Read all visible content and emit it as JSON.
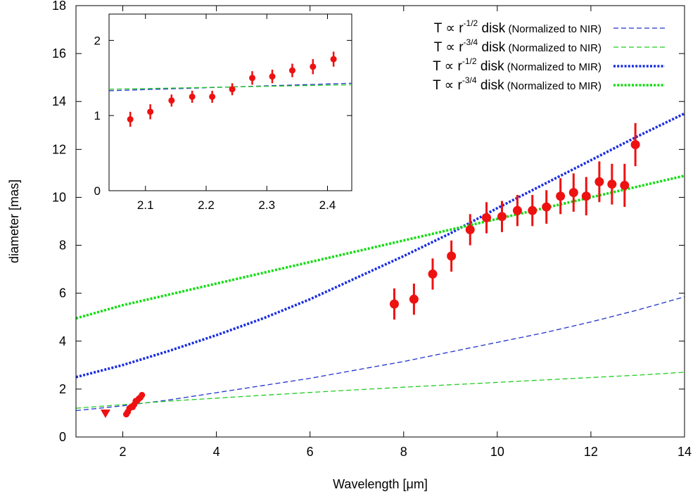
{
  "chart_data": {
    "type": "scatter",
    "xlabel": "Wavelength [μm]",
    "ylabel": "diameter [mas]",
    "xlim": [
      1,
      14
    ],
    "ylim": [
      0,
      18
    ],
    "x_ticks": [
      "2",
      "4",
      "6",
      "8",
      "10",
      "12",
      "14"
    ],
    "y_ticks": [
      "0",
      "2",
      "4",
      "6",
      "8",
      "10",
      "12",
      "14",
      "16",
      "18"
    ],
    "colors": {
      "data": "#ee1111",
      "nir_half": "#2233cc",
      "nir_threequarter": "#22cc22",
      "mir_half": "#1a2ee0",
      "mir_threequarter": "#11dd11"
    },
    "legend": [
      {
        "prefix": "T ∝ r",
        "exp": "-1/2",
        "label": " disk",
        "note": " (Normalized to NIR)",
        "style": "thin-dashed",
        "color": "#2233cc"
      },
      {
        "prefix": "T ∝ r",
        "exp": "-3/4",
        "label": " disk",
        "note": " (Normalized to NIR)",
        "style": "thin-dashed",
        "color": "#22cc22"
      },
      {
        "prefix": "T ∝ r",
        "exp": "-1/2",
        "label": " disk",
        "note": " (Normalized to MIR)",
        "style": "thick-dotted",
        "color": "#1a2ee0"
      },
      {
        "prefix": "T ∝ r",
        "exp": "-3/4",
        "label": " disk",
        "note": " (Normalized to MIR)",
        "style": "thick-dotted",
        "color": "#11dd11"
      }
    ],
    "series": [
      {
        "model": "nir-half",
        "style": "thin-dashed",
        "color": "#2233cc",
        "x": [
          1,
          2,
          3,
          4,
          5,
          6,
          7,
          8,
          9,
          10,
          11,
          12,
          13,
          14
        ],
        "y": [
          1.1,
          1.3,
          1.55,
          1.85,
          2.15,
          2.45,
          2.8,
          3.15,
          3.55,
          3.95,
          4.35,
          4.8,
          5.3,
          5.85
        ]
      },
      {
        "model": "nir-threequarter",
        "style": "thin-dashed",
        "color": "#22cc22",
        "x": [
          1,
          2,
          3,
          4,
          5,
          6,
          7,
          8,
          9,
          10,
          11,
          12,
          13,
          14
        ],
        "y": [
          1.2,
          1.35,
          1.5,
          1.62,
          1.74,
          1.86,
          1.97,
          2.08,
          2.18,
          2.28,
          2.38,
          2.48,
          2.58,
          2.7
        ]
      },
      {
        "model": "mir-half",
        "style": "thick-dotted",
        "color": "#1a2ee0",
        "x": [
          1,
          2,
          3,
          4,
          5,
          6,
          7,
          8,
          9,
          10,
          11,
          12,
          13,
          14
        ],
        "y": [
          2.5,
          3.0,
          3.6,
          4.25,
          4.95,
          5.75,
          6.65,
          7.55,
          8.5,
          9.55,
          10.55,
          11.55,
          12.55,
          13.5
        ]
      },
      {
        "model": "mir-threequarter",
        "style": "thick-dotted",
        "color": "#11dd11",
        "x": [
          1,
          2,
          3,
          4,
          5,
          6,
          7,
          8,
          9,
          10,
          11,
          12,
          13,
          14
        ],
        "y": [
          4.95,
          5.5,
          5.95,
          6.4,
          6.85,
          7.3,
          7.75,
          8.2,
          8.65,
          9.1,
          9.55,
          10.0,
          10.45,
          10.9
        ]
      }
    ],
    "points": [
      {
        "x": 1.63,
        "y": 1.0,
        "err": 0,
        "marker": "triangle-down"
      },
      {
        "x": 2.075,
        "y": 0.95,
        "err": 0.06
      },
      {
        "x": 2.108,
        "y": 1.05,
        "err": 0.06
      },
      {
        "x": 2.143,
        "y": 1.2,
        "err": 0.06
      },
      {
        "x": 2.177,
        "y": 1.25,
        "err": 0.06
      },
      {
        "x": 2.21,
        "y": 1.25,
        "err": 0.06
      },
      {
        "x": 2.243,
        "y": 1.35,
        "err": 0.06
      },
      {
        "x": 2.276,
        "y": 1.5,
        "err": 0.06
      },
      {
        "x": 2.309,
        "y": 1.52,
        "err": 0.06
      },
      {
        "x": 2.342,
        "y": 1.6,
        "err": 0.06
      },
      {
        "x": 2.376,
        "y": 1.65,
        "err": 0.06
      },
      {
        "x": 2.41,
        "y": 1.75,
        "err": 0.06
      },
      {
        "x": 7.8,
        "y": 5.55,
        "err": 0.65
      },
      {
        "x": 8.22,
        "y": 5.75,
        "err": 0.65
      },
      {
        "x": 8.62,
        "y": 6.8,
        "err": 0.65
      },
      {
        "x": 9.02,
        "y": 7.55,
        "err": 0.65
      },
      {
        "x": 9.42,
        "y": 8.65,
        "err": 0.65
      },
      {
        "x": 9.77,
        "y": 9.15,
        "err": 0.65
      },
      {
        "x": 10.1,
        "y": 9.2,
        "err": 0.65
      },
      {
        "x": 10.43,
        "y": 9.45,
        "err": 0.65
      },
      {
        "x": 10.75,
        "y": 9.45,
        "err": 0.65
      },
      {
        "x": 11.05,
        "y": 9.6,
        "err": 0.7
      },
      {
        "x": 11.35,
        "y": 10.05,
        "err": 0.75
      },
      {
        "x": 11.63,
        "y": 10.2,
        "err": 0.8
      },
      {
        "x": 11.9,
        "y": 10.05,
        "err": 0.8
      },
      {
        "x": 12.18,
        "y": 10.65,
        "err": 0.85
      },
      {
        "x": 12.45,
        "y": 10.55,
        "err": 0.85
      },
      {
        "x": 12.72,
        "y": 10.5,
        "err": 0.9
      },
      {
        "x": 12.95,
        "y": 12.2,
        "err": 0.9
      }
    ],
    "inset": {
      "xlim": [
        2.04,
        2.44
      ],
      "ylim": [
        0,
        2.35
      ],
      "x_ticks": [
        "2.1",
        "2.2",
        "2.3",
        "2.4"
      ],
      "y_ticks": [
        "0",
        "1",
        "2"
      ],
      "lines": [
        {
          "color": "#2233cc",
          "x": [
            2.04,
            2.44
          ],
          "y": [
            1.33,
            1.43
          ]
        },
        {
          "color": "#22cc22",
          "x": [
            2.04,
            2.44
          ],
          "y": [
            1.35,
            1.41
          ]
        }
      ],
      "points": [
        {
          "x": 2.075,
          "y": 0.95,
          "err": 0.1
        },
        {
          "x": 2.108,
          "y": 1.05,
          "err": 0.1
        },
        {
          "x": 2.143,
          "y": 1.2,
          "err": 0.08
        },
        {
          "x": 2.177,
          "y": 1.25,
          "err": 0.08
        },
        {
          "x": 2.21,
          "y": 1.25,
          "err": 0.08
        },
        {
          "x": 2.243,
          "y": 1.35,
          "err": 0.08
        },
        {
          "x": 2.276,
          "y": 1.5,
          "err": 0.09
        },
        {
          "x": 2.309,
          "y": 1.52,
          "err": 0.09
        },
        {
          "x": 2.342,
          "y": 1.6,
          "err": 0.09
        },
        {
          "x": 2.376,
          "y": 1.65,
          "err": 0.1
        },
        {
          "x": 2.41,
          "y": 1.75,
          "err": 0.1
        }
      ]
    }
  }
}
